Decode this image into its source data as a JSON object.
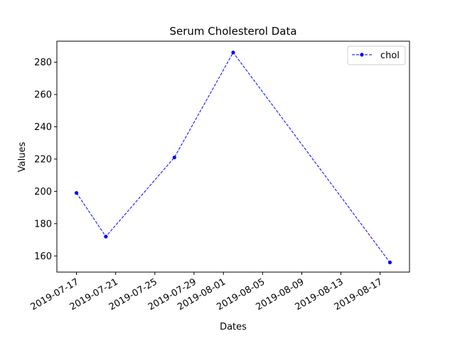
{
  "chart_data": {
    "type": "line",
    "title": "Serum Cholesterol Data",
    "xlabel": "Dates",
    "ylabel": "Values",
    "x_axis_type": "date",
    "xlim": [
      "2019-07-15",
      "2019-08-20"
    ],
    "ylim": [
      150,
      293
    ],
    "x_ticks": [
      "2019-07-17",
      "2019-07-21",
      "2019-07-25",
      "2019-07-29",
      "2019-08-01",
      "2019-08-05",
      "2019-08-09",
      "2019-08-13",
      "2019-08-17"
    ],
    "y_ticks": [
      160,
      180,
      200,
      220,
      240,
      260,
      280
    ],
    "grid": false,
    "legend_position": "top-right",
    "series": [
      {
        "name": "chol",
        "color": "#0000ff",
        "line_style": "dashed",
        "marker": "circle",
        "points": [
          {
            "x": "2019-07-17",
            "y": 199
          },
          {
            "x": "2019-07-20",
            "y": 172
          },
          {
            "x": "2019-07-27",
            "y": 221
          },
          {
            "x": "2019-08-02",
            "y": 286
          },
          {
            "x": "2019-08-18",
            "y": 156
          }
        ]
      }
    ]
  }
}
